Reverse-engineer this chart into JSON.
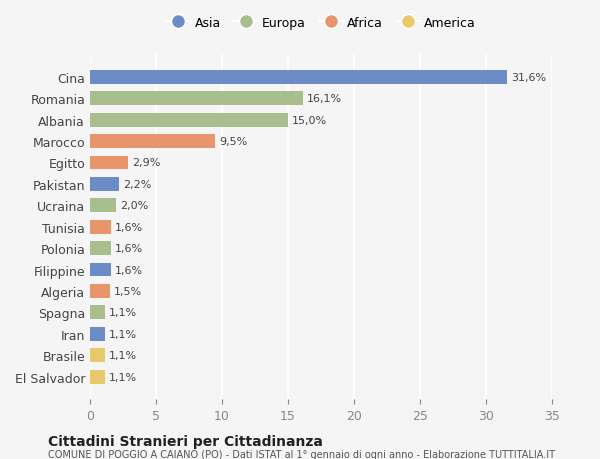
{
  "categories": [
    "El Salvador",
    "Brasile",
    "Iran",
    "Spagna",
    "Algeria",
    "Filippine",
    "Polonia",
    "Tunisia",
    "Ucraina",
    "Pakistan",
    "Egitto",
    "Marocco",
    "Albania",
    "Romania",
    "Cina"
  ],
  "values": [
    1.1,
    1.1,
    1.1,
    1.1,
    1.5,
    1.6,
    1.6,
    1.6,
    2.0,
    2.2,
    2.9,
    9.5,
    15.0,
    16.1,
    31.6
  ],
  "labels": [
    "1,1%",
    "1,1%",
    "1,1%",
    "1,1%",
    "1,5%",
    "1,6%",
    "1,6%",
    "1,6%",
    "2,0%",
    "2,2%",
    "2,9%",
    "9,5%",
    "15,0%",
    "16,1%",
    "31,6%"
  ],
  "colors": [
    "#e8c96b",
    "#e8c96b",
    "#6b8cc7",
    "#a8be8c",
    "#e8956b",
    "#6b8cc7",
    "#a8be8c",
    "#e8956b",
    "#a8be8c",
    "#6b8cc7",
    "#e8956b",
    "#e8956b",
    "#a8be8c",
    "#a8be8c",
    "#6b8cc7"
  ],
  "legend_labels": [
    "Asia",
    "Europa",
    "Africa",
    "America"
  ],
  "legend_colors": [
    "#6b8cc7",
    "#a8be8c",
    "#e8956b",
    "#e8c96b"
  ],
  "title": "Cittadini Stranieri per Cittadinanza",
  "subtitle": "COMUNE DI POGGIO A CAIANO (PO) - Dati ISTAT al 1° gennaio di ogni anno - Elaborazione TUTTITALIA.IT",
  "xlim": [
    0,
    35
  ],
  "xticks": [
    0,
    5,
    10,
    15,
    20,
    25,
    30,
    35
  ],
  "bg_color": "#f5f5f5",
  "bar_height": 0.65
}
